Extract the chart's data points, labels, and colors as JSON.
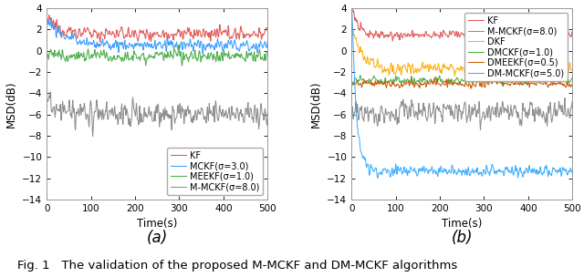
{
  "xlim": [
    0,
    500
  ],
  "ylim": [
    -14,
    4
  ],
  "yticks": [
    -14,
    -12,
    -10,
    -8,
    -6,
    -4,
    -2,
    0,
    2,
    4
  ],
  "xticks": [
    0,
    100,
    200,
    300,
    400,
    500
  ],
  "xlabel": "Time(s)",
  "ylabel": "MSD(dB)",
  "fig_caption": "Fig. 1   The validation of the proposed M-MCKF and DM-MCKF algorithms",
  "subplot_a": {
    "panel_label": "(a)",
    "legend_loc": "lower right",
    "series": [
      {
        "label": "KF",
        "color": "#e05050",
        "mean": 1.6,
        "noise": 0.45,
        "start": 3.0,
        "decay_steps": 30
      },
      {
        "label": "MCKF(σ=3.0)",
        "color": "#3399ff",
        "mean": 0.5,
        "noise": 0.45,
        "start": 3.0,
        "decay_steps": 40
      },
      {
        "label": "MEEKF(σ=1.0)",
        "color": "#44aa44",
        "mean": -0.5,
        "noise": 0.45,
        "start": -0.3,
        "decay_steps": 50
      },
      {
        "label": "M-MCKF(σ=8.0)",
        "color": "#888888",
        "mean": -6.0,
        "noise": 0.9,
        "start": -4.5,
        "decay_steps": 20
      }
    ]
  },
  "subplot_b": {
    "panel_label": "(b)",
    "legend_loc": "upper right",
    "series": [
      {
        "label": "KF",
        "color": "#e05050",
        "mean": 1.5,
        "noise": 0.35,
        "start": 4.0,
        "decay_steps": 15
      },
      {
        "label": "M-MCKF(σ=8.0)",
        "color": "#888888",
        "mean": -5.8,
        "noise": 0.85,
        "start": -5.5,
        "decay_steps": 1
      },
      {
        "label": "DKF",
        "color": "#ffaa00",
        "mean": -1.7,
        "noise": 0.45,
        "start": 2.5,
        "decay_steps": 20
      },
      {
        "label": "DMCKF(σ=1.0)",
        "color": "#44aa44",
        "mean": -2.8,
        "noise": 0.28,
        "start": -2.8,
        "decay_steps": 1
      },
      {
        "label": "DMEEKF(σ=0.5)",
        "color": "#cc5500",
        "mean": -3.1,
        "noise": 0.28,
        "start": -3.1,
        "decay_steps": 1
      },
      {
        "label": "DM-MCKF(σ=5.0)",
        "color": "#33aaff",
        "mean": -11.3,
        "noise": 0.4,
        "start": 4.0,
        "decay_steps": 10
      }
    ]
  },
  "legend_fontsize": 7.0,
  "axis_fontsize": 8.5,
  "tick_fontsize": 7.5,
  "caption_fontsize": 9.5,
  "panel_fontsize": 12
}
